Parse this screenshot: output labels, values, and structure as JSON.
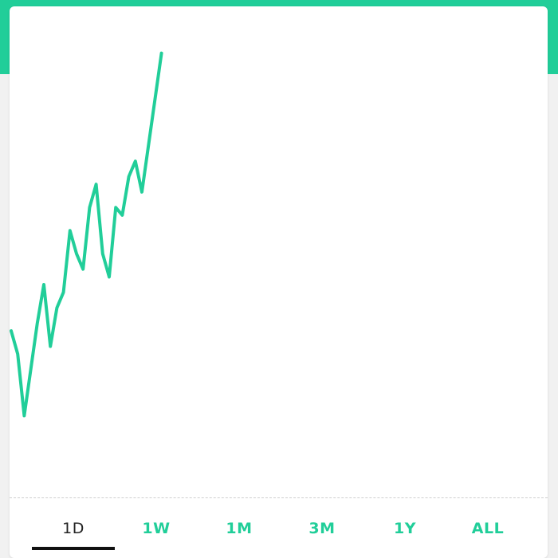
{
  "theme": {
    "accent": "#21ce99",
    "band": "#21ce99",
    "active_tab_color": "#222222",
    "underline": "#111111"
  },
  "chart_data": {
    "type": "line",
    "values": [
      52,
      49,
      41,
      47,
      53,
      58,
      50,
      55,
      57,
      65,
      62,
      60,
      68,
      71,
      62,
      59,
      68,
      67,
      72,
      74,
      70,
      76,
      82,
      88
    ],
    "ylim": [
      30,
      92
    ],
    "x_slots": 100,
    "color": "#21ce99"
  },
  "range_tabs": [
    {
      "label": "1D",
      "active": true
    },
    {
      "label": "1W",
      "active": false
    },
    {
      "label": "1M",
      "active": false
    },
    {
      "label": "3M",
      "active": false
    },
    {
      "label": "1Y",
      "active": false
    },
    {
      "label": "ALL",
      "active": false
    }
  ]
}
